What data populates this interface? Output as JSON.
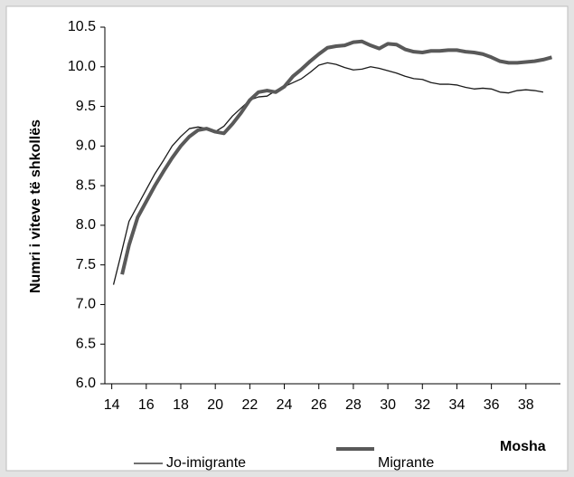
{
  "chart_data": {
    "type": "line",
    "y_label": "Numri i viteve të shkollës",
    "x_label": "Mosha",
    "xlim": [
      13.6,
      40
    ],
    "xticks": [
      14,
      16,
      18,
      20,
      22,
      24,
      26,
      28,
      30,
      32,
      34,
      36,
      38
    ],
    "ylim": [
      6,
      10.5
    ],
    "yticks": [
      {
        "value": 6,
        "label": "6.0"
      },
      {
        "value": 6.5,
        "label": "6.5"
      },
      {
        "value": 7,
        "label": "7.0"
      },
      {
        "value": 7.5,
        "label": "7.5"
      },
      {
        "value": 8,
        "label": "8.0"
      },
      {
        "value": 8.5,
        "label": "8.5"
      },
      {
        "value": 9,
        "label": "9.0"
      },
      {
        "value": 9.5,
        "label": "9.5"
      },
      {
        "value": 10,
        "label": "10.0"
      },
      {
        "value": 10.5,
        "label": "10.5"
      }
    ],
    "series": [
      {
        "name": "Jo-imigrante",
        "color": "#1a1a1a",
        "width": 1.3,
        "x": [
          14.1,
          14.5,
          15,
          15.5,
          16,
          16.5,
          17,
          17.5,
          18,
          18.5,
          19,
          19.5,
          20,
          20.5,
          21,
          21.5,
          22,
          22.5,
          23,
          23.5,
          24,
          24.5,
          25,
          25.5,
          26,
          26.5,
          27,
          27.5,
          28,
          28.5,
          29,
          29.5,
          30,
          30.5,
          31,
          31.5,
          32,
          32.5,
          33,
          33.5,
          34,
          34.5,
          35,
          35.5,
          36,
          36.5,
          37,
          37.5,
          38,
          38.5,
          39
        ],
        "values": [
          7.25,
          7.6,
          8.05,
          8.25,
          8.45,
          8.65,
          8.82,
          9.0,
          9.12,
          9.22,
          9.24,
          9.22,
          9.18,
          9.25,
          9.38,
          9.48,
          9.58,
          9.62,
          9.63,
          9.7,
          9.75,
          9.8,
          9.85,
          9.93,
          10.02,
          10.05,
          10.03,
          9.99,
          9.96,
          9.97,
          10.0,
          9.98,
          9.95,
          9.92,
          9.88,
          9.85,
          9.84,
          9.8,
          9.78,
          9.78,
          9.77,
          9.74,
          9.72,
          9.73,
          9.72,
          9.68,
          9.67,
          9.7,
          9.71,
          9.7,
          9.68
        ]
      },
      {
        "name": "Migrante",
        "color": "#595959",
        "width": 4,
        "x": [
          14.6,
          15,
          15.5,
          16,
          16.5,
          17,
          17.5,
          18,
          18.5,
          19,
          19.5,
          20,
          20.5,
          21,
          21.5,
          22,
          22.5,
          23,
          23.5,
          24,
          24.5,
          25,
          25.5,
          26,
          26.5,
          27,
          27.5,
          28,
          28.5,
          29,
          29.5,
          30,
          30.5,
          31,
          31.5,
          32,
          32.5,
          33,
          33.5,
          34,
          34.5,
          35,
          35.5,
          36,
          36.5,
          37,
          37.5,
          38,
          38.5,
          39,
          39.5
        ],
        "values": [
          7.38,
          7.75,
          8.1,
          8.3,
          8.5,
          8.68,
          8.85,
          9.0,
          9.12,
          9.2,
          9.22,
          9.18,
          9.16,
          9.28,
          9.42,
          9.58,
          9.68,
          9.7,
          9.68,
          9.75,
          9.88,
          9.97,
          10.07,
          10.16,
          10.24,
          10.26,
          10.27,
          10.31,
          10.32,
          10.27,
          10.23,
          10.29,
          10.28,
          10.22,
          10.19,
          10.18,
          10.2,
          10.2,
          10.21,
          10.21,
          10.19,
          10.18,
          10.16,
          10.12,
          10.07,
          10.05,
          10.05,
          10.06,
          10.07,
          10.09,
          10.12
        ]
      }
    ]
  }
}
